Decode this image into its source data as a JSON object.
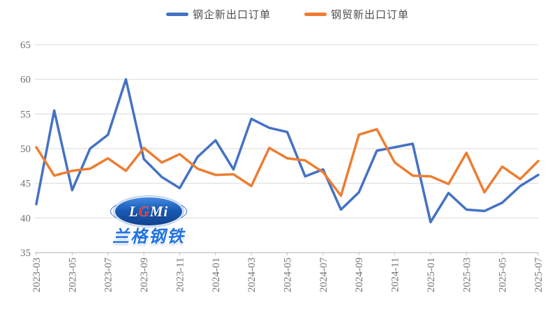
{
  "chart_data": {
    "type": "line",
    "x": [
      "2023-03",
      "2023-04",
      "2023-05",
      "2023-06",
      "2023-07",
      "2023-08",
      "2023-09",
      "2023-10",
      "2023-11",
      "2023-12",
      "2024-01",
      "2024-02",
      "2024-03",
      "2024-04",
      "2024-05",
      "2024-06",
      "2024-07",
      "2024-08",
      "2024-09",
      "2024-10",
      "2024-11",
      "2024-12",
      "2025-01",
      "2025-02",
      "2025-03",
      "2025-04",
      "2025-05",
      "2025-06",
      "2025-07"
    ],
    "series": [
      {
        "name": "钢企新出口订单",
        "color": "#4472C4",
        "values": [
          42.0,
          55.5,
          44.0,
          50.0,
          52.0,
          60.0,
          48.5,
          45.9,
          44.3,
          48.8,
          51.2,
          47.0,
          54.3,
          53.0,
          52.4,
          46.0,
          47.0,
          41.2,
          43.7,
          49.7,
          50.2,
          50.7,
          39.4,
          43.6,
          41.2,
          41.0,
          42.2,
          44.6,
          46.2
        ]
      },
      {
        "name": "钢贸新出口订单",
        "color": "#ED7D31",
        "values": [
          50.2,
          46.1,
          46.8,
          47.1,
          48.6,
          46.8,
          50.1,
          48.0,
          49.2,
          47.1,
          46.2,
          46.3,
          44.6,
          50.1,
          48.6,
          48.3,
          46.6,
          43.2,
          52.0,
          52.8,
          48.0,
          46.1,
          46.0,
          44.9,
          49.4,
          43.7,
          47.4,
          45.6,
          48.2
        ]
      }
    ],
    "ylim": [
      35,
      65
    ],
    "yticks": [
      35,
      40,
      45,
      50,
      55,
      60,
      65
    ],
    "xticks_shown": [
      "2023-03",
      "2023-05",
      "2023-07",
      "2023-09",
      "2023-11",
      "2024-01",
      "2024-03",
      "2024-05",
      "2024-07",
      "2024-09",
      "2024-11",
      "2025-01",
      "2025-03",
      "2025-05",
      "2025-07"
    ],
    "grid": true,
    "legend_position": "top-center"
  },
  "watermark": {
    "logo_l": "L",
    "logo_g": "G",
    "logo_mi": "Mi",
    "caption": "兰格钢铁"
  },
  "colors": {
    "gridline": "#d9d9d9",
    "axis": "#bfbfbf",
    "tick_label": "#737373",
    "background": "#ffffff"
  }
}
